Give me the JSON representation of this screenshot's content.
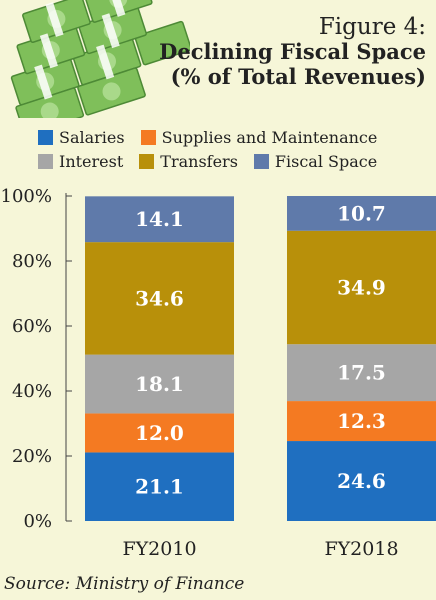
{
  "header": {
    "figure_number": "Figure 4:",
    "title_line1": "Declining Fiscal Space",
    "title_line2": "(% of Total Revenues)"
  },
  "source": "Source: Ministry of Finance",
  "illustration": {
    "icon": "money-stack-icon"
  },
  "chart_data": {
    "type": "bar",
    "stacked": true,
    "categories": [
      "FY2010",
      "FY2018"
    ],
    "series": [
      {
        "name": "Salaries",
        "color": "#1f6fc0",
        "values": [
          21.1,
          24.6
        ]
      },
      {
        "name": "Supplies and Maintenance",
        "color": "#f47a22",
        "values": [
          12.0,
          12.3
        ]
      },
      {
        "name": "Interest",
        "color": "#a6a6a6",
        "values": [
          18.1,
          17.5
        ]
      },
      {
        "name": "Transfers",
        "color": "#b8900a",
        "values": [
          34.6,
          34.9
        ]
      },
      {
        "name": "Fiscal Space",
        "color": "#5f7aaa",
        "values": [
          14.1,
          10.7
        ]
      }
    ],
    "data_labels": [
      [
        "21.1",
        "24.6"
      ],
      [
        "12.0",
        "12.3"
      ],
      [
        "18.1",
        "17.5"
      ],
      [
        "34.6",
        "34.9"
      ],
      [
        "14.1",
        "10.7"
      ]
    ],
    "yticks": [
      "0%",
      "20%",
      "40%",
      "60%",
      "80%",
      "100%"
    ],
    "ylim": [
      0,
      100
    ],
    "grid": false,
    "legend_position": "top"
  }
}
